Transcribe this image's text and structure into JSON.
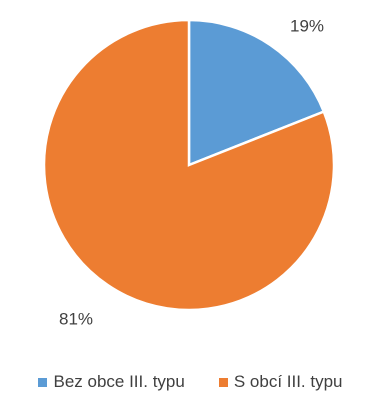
{
  "chart_data": {
    "type": "pie",
    "categories": [
      "Bez obce III. typu",
      "S obcí III. typu"
    ],
    "values": [
      19,
      81
    ],
    "data_labels": [
      "19%",
      "81%"
    ],
    "colors": [
      "#5b9bd5",
      "#ed7d31"
    ],
    "start_angle_deg": 0,
    "direction": "clockwise",
    "legend_position": "bottom"
  },
  "legend": {
    "items": [
      {
        "label": "Bez obce III. typu",
        "color": "#5b9bd5"
      },
      {
        "label": "S obcí III. typu",
        "color": "#ed7d31"
      }
    ]
  }
}
